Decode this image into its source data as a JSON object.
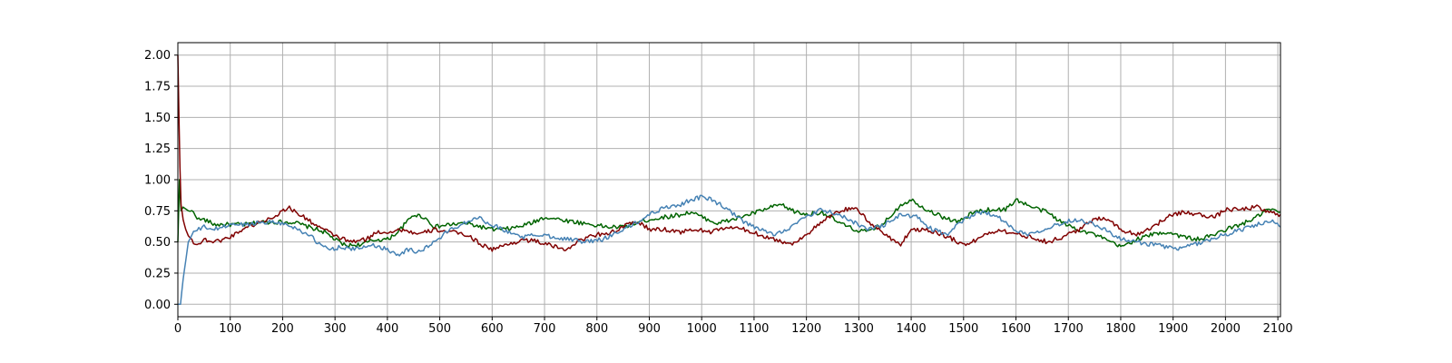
{
  "chart_data": {
    "type": "line",
    "title": "",
    "xlabel": "",
    "ylabel": "",
    "xlim": [
      0,
      2105
    ],
    "ylim": [
      -0.1,
      2.1
    ],
    "grid": true,
    "x_ticks": [
      0,
      100,
      200,
      300,
      400,
      500,
      600,
      700,
      800,
      900,
      1000,
      1100,
      1200,
      1300,
      1400,
      1500,
      1600,
      1700,
      1800,
      1900,
      2000,
      2100
    ],
    "x_tick_labels": [
      "0",
      "100",
      "200",
      "300",
      "400",
      "500",
      "600",
      "700",
      "800",
      "900",
      "1000",
      "1100",
      "1200",
      "1300",
      "1400",
      "1500",
      "1600",
      "1700",
      "1800",
      "1900",
      "2000",
      "2100"
    ],
    "y_ticks": [
      0.0,
      0.25,
      0.5,
      0.75,
      1.0,
      1.25,
      1.5,
      1.75,
      2.0
    ],
    "y_tick_labels": [
      "0.00",
      "0.25",
      "0.50",
      "0.75",
      "1.00",
      "1.25",
      "1.50",
      "1.75",
      "2.00"
    ],
    "series": [
      {
        "color": "#006400",
        "x": [
          0,
          3,
          6,
          10,
          20,
          30,
          40,
          50,
          70,
          100,
          130,
          160,
          190,
          220,
          250,
          280,
          300,
          320,
          350,
          380,
          400,
          420,
          450,
          470,
          490,
          520,
          550,
          580,
          600,
          620,
          650,
          680,
          700,
          730,
          760,
          790,
          820,
          850,
          880,
          900,
          930,
          960,
          980,
          1000,
          1030,
          1060,
          1090,
          1120,
          1150,
          1180,
          1200,
          1230,
          1260,
          1290,
          1320,
          1350,
          1380,
          1400,
          1430,
          1460,
          1490,
          1520,
          1550,
          1580,
          1600,
          1630,
          1660,
          1690,
          1720,
          1750,
          1780,
          1800,
          1830,
          1860,
          1890,
          1920,
          1950,
          1980,
          2000,
          2030,
          2060,
          2080,
          2105
        ],
        "y": [
          0.5,
          1.0,
          0.75,
          0.78,
          0.75,
          0.74,
          0.68,
          0.68,
          0.64,
          0.64,
          0.64,
          0.66,
          0.66,
          0.66,
          0.62,
          0.58,
          0.52,
          0.47,
          0.48,
          0.52,
          0.52,
          0.58,
          0.72,
          0.7,
          0.62,
          0.64,
          0.65,
          0.62,
          0.6,
          0.6,
          0.62,
          0.66,
          0.7,
          0.68,
          0.66,
          0.64,
          0.62,
          0.62,
          0.66,
          0.68,
          0.7,
          0.72,
          0.74,
          0.7,
          0.65,
          0.68,
          0.72,
          0.76,
          0.8,
          0.74,
          0.72,
          0.74,
          0.66,
          0.6,
          0.58,
          0.66,
          0.8,
          0.84,
          0.76,
          0.7,
          0.66,
          0.74,
          0.76,
          0.76,
          0.84,
          0.78,
          0.74,
          0.65,
          0.6,
          0.56,
          0.5,
          0.46,
          0.52,
          0.56,
          0.58,
          0.54,
          0.52,
          0.56,
          0.6,
          0.64,
          0.7,
          0.76,
          0.74
        ]
      },
      {
        "color": "#800000",
        "x": [
          0,
          2,
          4,
          6,
          10,
          15,
          20,
          30,
          40,
          50,
          70,
          100,
          130,
          160,
          190,
          210,
          240,
          270,
          300,
          330,
          360,
          380,
          400,
          430,
          460,
          490,
          520,
          550,
          580,
          600,
          630,
          660,
          690,
          720,
          740,
          770,
          800,
          830,
          860,
          880,
          900,
          930,
          960,
          990,
          1020,
          1050,
          1080,
          1110,
          1140,
          1170,
          1200,
          1230,
          1260,
          1290,
          1320,
          1350,
          1380,
          1400,
          1430,
          1460,
          1490,
          1510,
          1540,
          1570,
          1600,
          1630,
          1660,
          1690,
          1720,
          1750,
          1770,
          1800,
          1830,
          1860,
          1890,
          1920,
          1950,
          1980,
          2000,
          2030,
          2060,
          2080,
          2105
        ],
        "y": [
          2.0,
          1.5,
          1.1,
          0.8,
          0.68,
          0.6,
          0.55,
          0.5,
          0.48,
          0.52,
          0.5,
          0.54,
          0.62,
          0.66,
          0.72,
          0.78,
          0.7,
          0.62,
          0.55,
          0.5,
          0.52,
          0.58,
          0.58,
          0.6,
          0.56,
          0.6,
          0.58,
          0.56,
          0.48,
          0.44,
          0.48,
          0.52,
          0.5,
          0.46,
          0.44,
          0.52,
          0.56,
          0.58,
          0.64,
          0.66,
          0.6,
          0.6,
          0.58,
          0.6,
          0.58,
          0.62,
          0.6,
          0.56,
          0.52,
          0.48,
          0.56,
          0.66,
          0.74,
          0.78,
          0.66,
          0.56,
          0.48,
          0.6,
          0.6,
          0.56,
          0.5,
          0.48,
          0.56,
          0.6,
          0.56,
          0.54,
          0.5,
          0.54,
          0.6,
          0.68,
          0.7,
          0.6,
          0.56,
          0.62,
          0.7,
          0.74,
          0.72,
          0.7,
          0.76,
          0.76,
          0.78,
          0.74,
          0.72
        ]
      },
      {
        "color": "#4682b4",
        "x": [
          0,
          5,
          10,
          15,
          20,
          30,
          40,
          50,
          70,
          100,
          130,
          160,
          190,
          220,
          250,
          270,
          290,
          310,
          340,
          370,
          400,
          420,
          440,
          460,
          490,
          520,
          550,
          570,
          600,
          630,
          660,
          690,
          720,
          750,
          780,
          810,
          840,
          870,
          900,
          930,
          960,
          980,
          1000,
          1020,
          1050,
          1080,
          1110,
          1140,
          1170,
          1200,
          1230,
          1260,
          1290,
          1320,
          1350,
          1380,
          1410,
          1440,
          1470,
          1500,
          1530,
          1560,
          1590,
          1620,
          1650,
          1680,
          1710,
          1740,
          1770,
          1800,
          1830,
          1860,
          1890,
          1910,
          1940,
          1970,
          2000,
          2030,
          2060,
          2090,
          2105
        ],
        "y": [
          0.0,
          0.0,
          0.2,
          0.35,
          0.5,
          0.58,
          0.6,
          0.62,
          0.6,
          0.64,
          0.64,
          0.66,
          0.66,
          0.62,
          0.56,
          0.48,
          0.44,
          0.46,
          0.44,
          0.48,
          0.44,
          0.4,
          0.44,
          0.42,
          0.5,
          0.6,
          0.66,
          0.7,
          0.64,
          0.58,
          0.54,
          0.56,
          0.54,
          0.52,
          0.5,
          0.52,
          0.58,
          0.64,
          0.72,
          0.78,
          0.8,
          0.84,
          0.86,
          0.84,
          0.76,
          0.66,
          0.6,
          0.56,
          0.62,
          0.7,
          0.76,
          0.72,
          0.66,
          0.6,
          0.64,
          0.72,
          0.7,
          0.6,
          0.56,
          0.68,
          0.74,
          0.72,
          0.62,
          0.56,
          0.6,
          0.64,
          0.68,
          0.66,
          0.6,
          0.52,
          0.5,
          0.48,
          0.46,
          0.44,
          0.48,
          0.52,
          0.56,
          0.6,
          0.64,
          0.66,
          0.62
        ]
      }
    ]
  }
}
